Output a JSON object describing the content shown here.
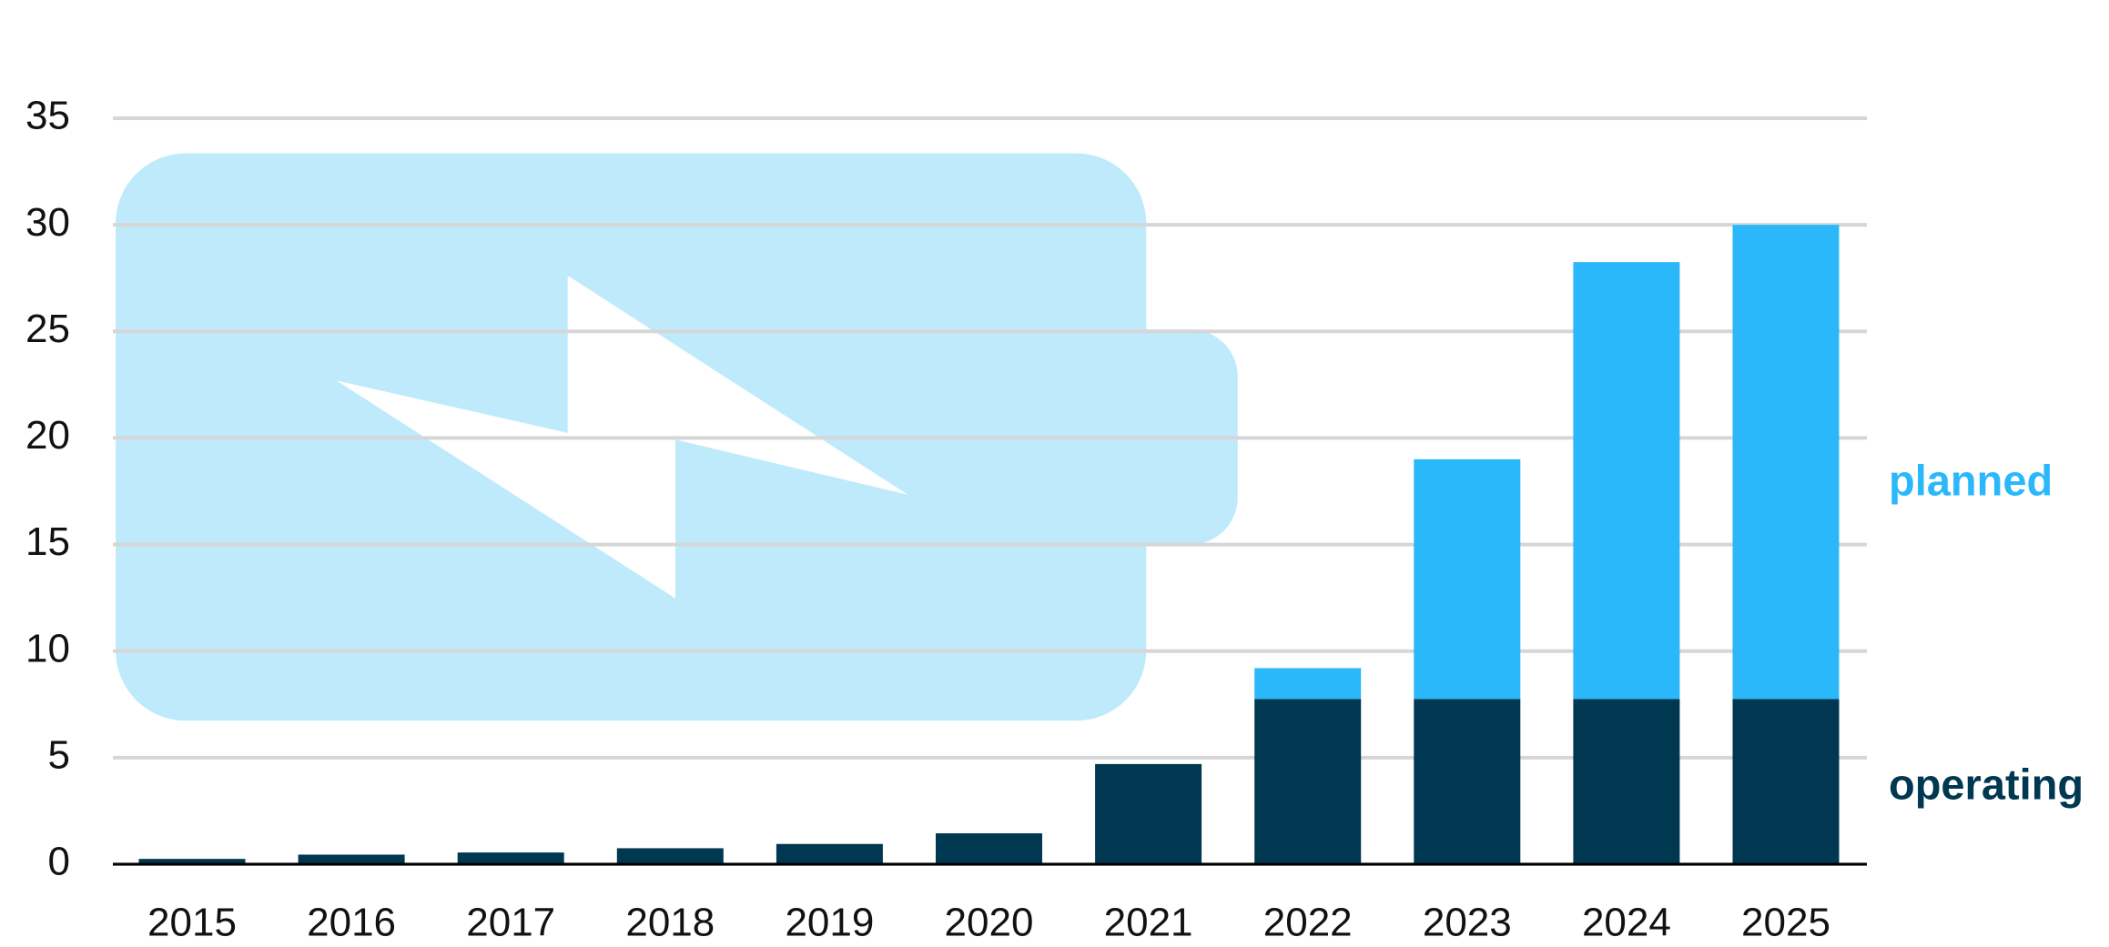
{
  "chart_data": {
    "type": "stacked-bar",
    "categories": [
      "2015",
      "2016",
      "2017",
      "2018",
      "2019",
      "2020",
      "2021",
      "2022",
      "2023",
      "2024",
      "2025"
    ],
    "series": [
      {
        "name": "operating",
        "color": "#003751",
        "values": [
          0.25,
          0.45,
          0.55,
          0.75,
          0.95,
          1.45,
          4.7,
          7.75,
          7.75,
          7.75,
          7.75
        ]
      },
      {
        "name": "planned",
        "color": "#2bb8fb",
        "values": [
          null,
          null,
          null,
          null,
          null,
          null,
          null,
          1.45,
          11.25,
          20.5,
          22.25
        ]
      }
    ],
    "ylim": [
      0,
      35
    ],
    "yticks": [
      0,
      5,
      10,
      15,
      20,
      25,
      30,
      35
    ],
    "grid": true,
    "legend": "right"
  }
}
